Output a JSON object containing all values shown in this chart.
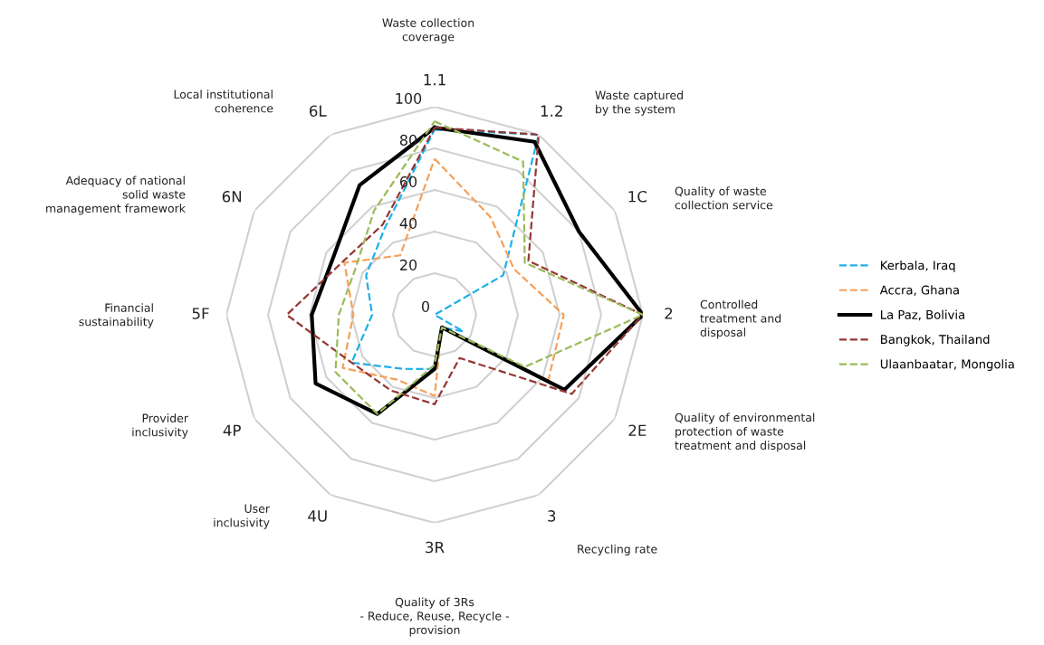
{
  "chart_data": {
    "type": "radar",
    "categories": [
      "1.1",
      "1.2",
      "1C",
      "2",
      "2E",
      "3",
      "3R",
      "4U",
      "4P",
      "5F",
      "6N",
      "6L"
    ],
    "ylim": [
      0,
      100
    ],
    "yticks": [
      0,
      20,
      40,
      60,
      80,
      100
    ],
    "grid": true,
    "legend": "right",
    "marker": "none",
    "series": [
      {
        "name": "Kerbala, Iraq",
        "color": "#1fb0e8",
        "line_style": "dashed",
        "values": [
          89,
          100,
          38,
          0,
          16,
          7,
          26,
          30,
          46,
          30,
          38,
          48
        ]
      },
      {
        "name": "Accra, Ghana",
        "color": "#f5a05a",
        "line_style": "dashed",
        "values": [
          75,
          54,
          44,
          62,
          63,
          7,
          39,
          36,
          51,
          39,
          50,
          33
        ]
      },
      {
        "name": "La Paz, Bolivia",
        "color": "#000000",
        "line_style": "solid",
        "values": [
          90,
          96,
          80,
          100,
          72,
          7,
          26,
          55,
          66,
          59,
          56,
          72
        ]
      },
      {
        "name": "Bangkok, Thailand",
        "color": "#953735",
        "line_style": "dashed",
        "values": [
          90,
          100,
          52,
          100,
          76,
          24,
          43,
          42,
          46,
          71,
          51,
          50
        ]
      },
      {
        "name": "Ulaanbaatar, Mongolia",
        "color": "#9bbb59",
        "line_style": "dashed",
        "values": [
          93,
          85,
          50,
          100,
          50,
          7,
          24,
          55,
          55,
          46,
          44,
          58
        ]
      }
    ],
    "annotations": [
      "Waste collection\ncoverage",
      "Waste captured\nby the system",
      "Quality of waste\ncollection service",
      "Controlled\ntreatment and\ndisposal",
      "Quality of environmental\nprotection of waste\ntreatment and disposal",
      "Recycling rate",
      "Quality of 3Rs\n- Reduce, Reuse, Recycle -\nprovision",
      "User\ninclusivity",
      "Provider\ninclusivity",
      "Financial\nsustainability",
      "Adequacy of national\nsolid waste\nmanagement framework",
      "Local institutional\ncoherence"
    ]
  }
}
